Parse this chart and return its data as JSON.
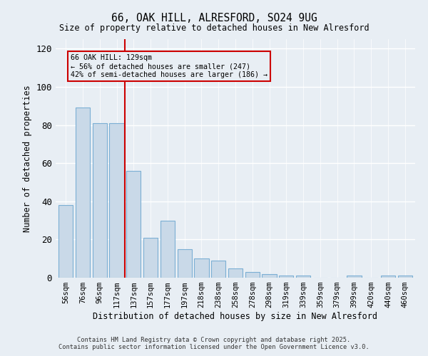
{
  "title1": "66, OAK HILL, ALRESFORD, SO24 9UG",
  "title2": "Size of property relative to detached houses in New Alresford",
  "xlabel": "Distribution of detached houses by size in New Alresford",
  "ylabel": "Number of detached properties",
  "bar_labels": [
    "56sqm",
    "76sqm",
    "96sqm",
    "117sqm",
    "137sqm",
    "157sqm",
    "177sqm",
    "197sqm",
    "218sqm",
    "238sqm",
    "258sqm",
    "278sqm",
    "298sqm",
    "319sqm",
    "339sqm",
    "359sqm",
    "379sqm",
    "399sqm",
    "420sqm",
    "440sqm",
    "460sqm"
  ],
  "bar_values": [
    38,
    89,
    81,
    81,
    56,
    21,
    30,
    15,
    10,
    9,
    5,
    3,
    2,
    1,
    1,
    0,
    0,
    1,
    0,
    1,
    1
  ],
  "bar_color": "#c9d9e8",
  "bar_edgecolor": "#7bafd4",
  "annotation_text": "66 OAK HILL: 129sqm\n← 56% of detached houses are smaller (247)\n42% of semi-detached houses are larger (186) →",
  "annotation_box_edgecolor": "#cc0000",
  "vline_color": "#cc0000",
  "vline_x": 3.5,
  "ylim": [
    0,
    125
  ],
  "yticks": [
    0,
    20,
    40,
    60,
    80,
    100,
    120
  ],
  "bg_color": "#e8eef4",
  "grid_color": "#ffffff",
  "footer1": "Contains HM Land Registry data © Crown copyright and database right 2025.",
  "footer2": "Contains public sector information licensed under the Open Government Licence v3.0."
}
